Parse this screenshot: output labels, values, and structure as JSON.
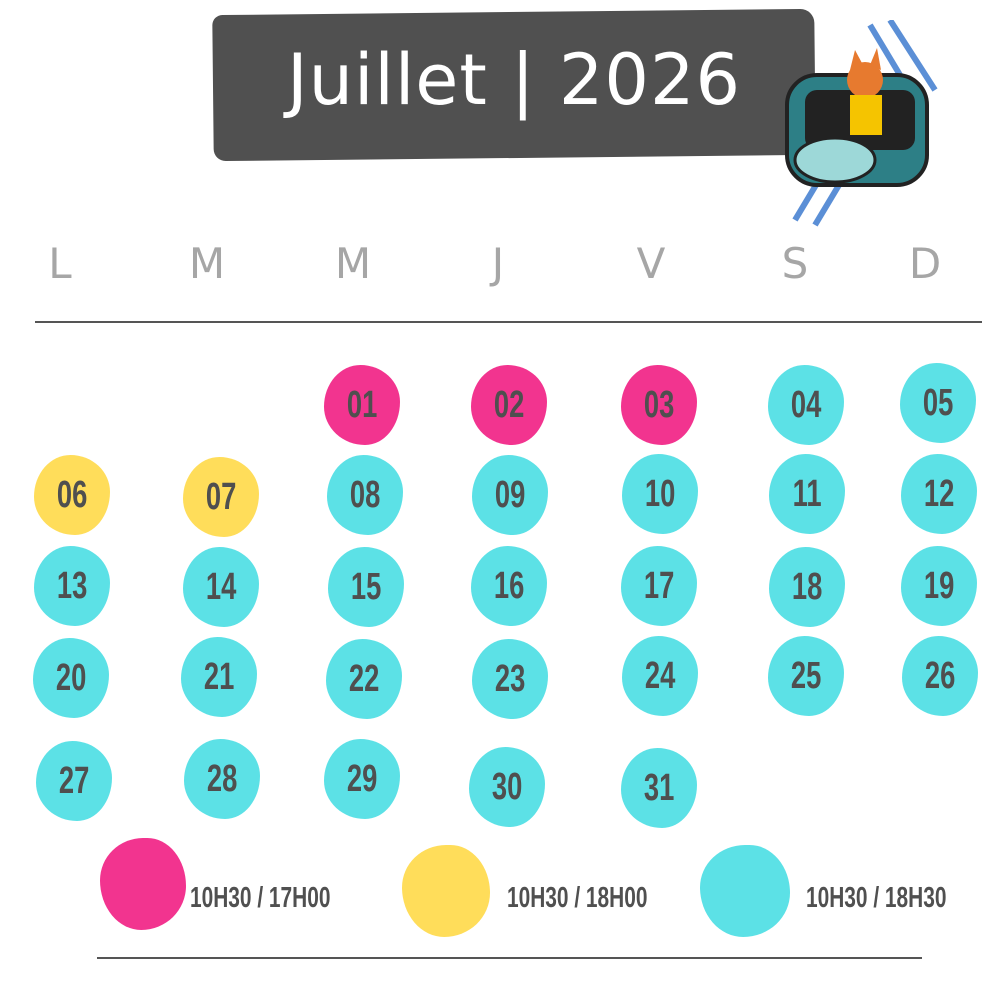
{
  "header": {
    "title": "Juillet | 2026"
  },
  "mascot": {
    "icon": "fox-roller-coaster-illustration"
  },
  "weekdays": [
    "L",
    "M",
    "M",
    "J",
    "V",
    "S",
    "D"
  ],
  "colors": {
    "pink": "#f2348f",
    "yellow": "#ffdd5a",
    "cyan": "#5ce1e6",
    "header_bg": "#505050",
    "text": "#4f4f4f"
  },
  "days": [
    {
      "label": "01",
      "type": "pink"
    },
    {
      "label": "02",
      "type": "pink"
    },
    {
      "label": "03",
      "type": "pink"
    },
    {
      "label": "04",
      "type": "cyan"
    },
    {
      "label": "05",
      "type": "cyan"
    },
    {
      "label": "06",
      "type": "yellow"
    },
    {
      "label": "07",
      "type": "yellow"
    },
    {
      "label": "08",
      "type": "cyan"
    },
    {
      "label": "09",
      "type": "cyan"
    },
    {
      "label": "10",
      "type": "cyan"
    },
    {
      "label": "11",
      "type": "cyan"
    },
    {
      "label": "12",
      "type": "cyan"
    },
    {
      "label": "13",
      "type": "cyan"
    },
    {
      "label": "14",
      "type": "cyan"
    },
    {
      "label": "15",
      "type": "cyan"
    },
    {
      "label": "16",
      "type": "cyan"
    },
    {
      "label": "17",
      "type": "cyan"
    },
    {
      "label": "18",
      "type": "cyan"
    },
    {
      "label": "19",
      "type": "cyan"
    },
    {
      "label": "20",
      "type": "cyan"
    },
    {
      "label": "21",
      "type": "cyan"
    },
    {
      "label": "22",
      "type": "cyan"
    },
    {
      "label": "23",
      "type": "cyan"
    },
    {
      "label": "24",
      "type": "cyan"
    },
    {
      "label": "25",
      "type": "cyan"
    },
    {
      "label": "26",
      "type": "cyan"
    },
    {
      "label": "27",
      "type": "cyan"
    },
    {
      "label": "28",
      "type": "cyan"
    },
    {
      "label": "29",
      "type": "cyan"
    },
    {
      "label": "30",
      "type": "cyan"
    },
    {
      "label": "31",
      "type": "cyan"
    }
  ],
  "legend": [
    {
      "type": "pink",
      "label": "10H30 / 17H00"
    },
    {
      "type": "yellow",
      "label": "10H30 / 18H00"
    },
    {
      "type": "cyan",
      "label": "10H30 / 18H30"
    }
  ]
}
